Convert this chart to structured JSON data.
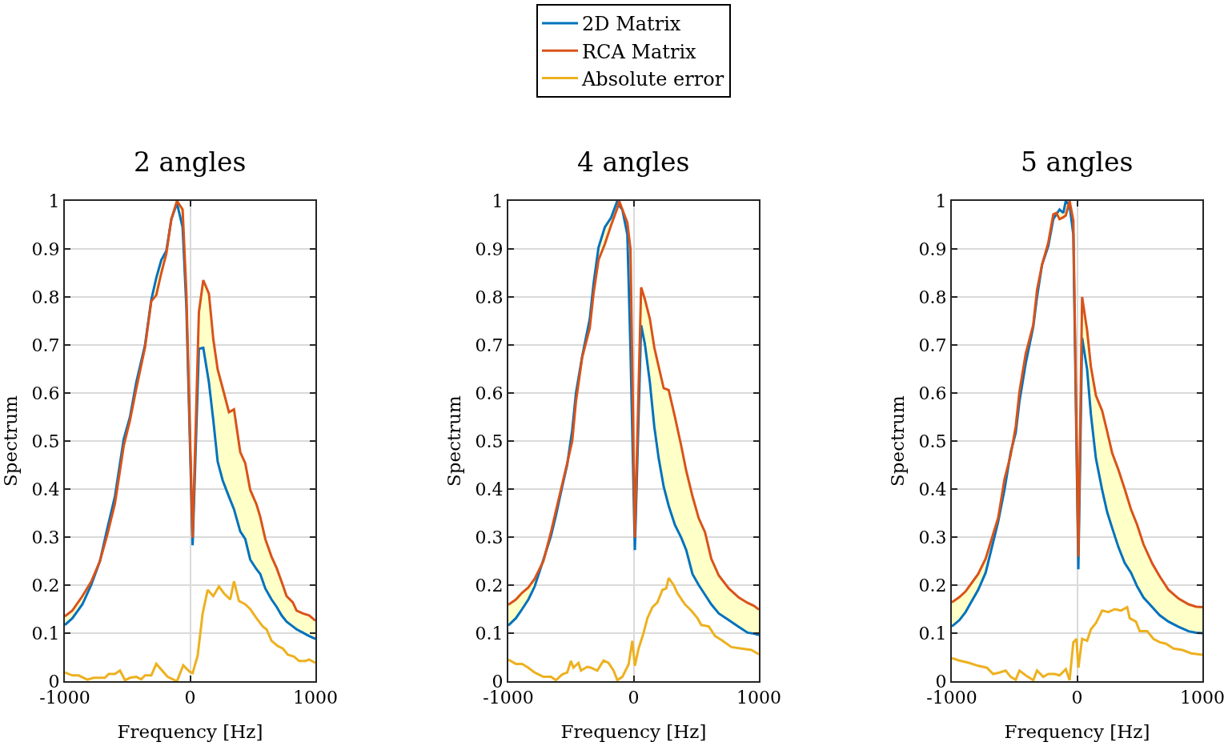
{
  "chart_data": [
    {
      "type": "line",
      "title": "2 angles",
      "xlabel": "Frequency [Hz]",
      "ylabel": "Spectrum",
      "xlim": [
        -1000,
        1000
      ],
      "ylim": [
        0,
        1
      ],
      "xticks": [
        -1000,
        0,
        1000
      ],
      "yticks": [
        0,
        0.1,
        0.2,
        0.3,
        0.4,
        0.5,
        0.6,
        0.7,
        0.8,
        0.9,
        1
      ],
      "grid": true,
      "x": [
        -1000,
        -940,
        -860,
        -790,
        -720,
        -660,
        -600,
        -530,
        -480,
        -430,
        -360,
        -310,
        -270,
        -230,
        -190,
        -150,
        -105,
        -60,
        -30,
        20,
        70,
        105,
        150,
        185,
        220,
        260,
        310,
        350,
        400,
        440,
        480,
        530,
        560,
        600,
        650,
        690,
        730,
        770,
        820,
        850,
        900,
        950,
        1000
      ],
      "series": [
        {
          "color": "#0072bd",
          "values": [
            0.117,
            0.131,
            0.16,
            0.2,
            0.25,
            0.319,
            0.385,
            0.504,
            0.55,
            0.622,
            0.7,
            0.794,
            0.84,
            0.877,
            0.896,
            0.962,
            0.995,
            0.945,
            0.78,
            0.283,
            0.692,
            0.694,
            0.622,
            0.543,
            0.457,
            0.418,
            0.384,
            0.358,
            0.312,
            0.296,
            0.253,
            0.233,
            0.223,
            0.193,
            0.17,
            0.155,
            0.137,
            0.124,
            0.114,
            0.108,
            0.101,
            0.094,
            0.088
          ]
        },
        {
          "color": "#d95319",
          "values": [
            0.135,
            0.147,
            0.177,
            0.207,
            0.25,
            0.306,
            0.37,
            0.49,
            0.543,
            0.609,
            0.695,
            0.791,
            0.804,
            0.85,
            0.89,
            0.962,
            1,
            0.982,
            0.81,
            0.299,
            0.768,
            0.835,
            0.807,
            0.712,
            0.649,
            0.61,
            0.56,
            0.566,
            0.477,
            0.454,
            0.398,
            0.368,
            0.342,
            0.296,
            0.259,
            0.236,
            0.207,
            0.177,
            0.164,
            0.147,
            0.141,
            0.137,
            0.126
          ],
          "lower": [
            0.117,
            0.131,
            0.16,
            0.2,
            0.25,
            0.319,
            0.385,
            0.504,
            0.55,
            0.622,
            0.7,
            0.794,
            0.84,
            0.877,
            0.896,
            0.962,
            0.995,
            0.945,
            0.78,
            0.283,
            0.692,
            0.694,
            0.622,
            0.543,
            0.457,
            0.418,
            0.384,
            0.358,
            0.312,
            0.296,
            0.253,
            0.233,
            0.223,
            0.193,
            0.17,
            0.155,
            0.137,
            0.124,
            0.114,
            0.108,
            0.101,
            0.094,
            0.088
          ],
          "upper": [
            0.135,
            0.147,
            0.177,
            0.207,
            0.25,
            0.306,
            0.37,
            0.49,
            0.543,
            0.609,
            0.695,
            0.791,
            0.804,
            0.85,
            0.89,
            0.962,
            1,
            0.982,
            0.81,
            0.299,
            0.768,
            0.835,
            0.807,
            0.712,
            0.649,
            0.61,
            0.56,
            0.566,
            0.477,
            0.454,
            0.398,
            0.368,
            0.342,
            0.296,
            0.259,
            0.236,
            0.207,
            0.177,
            0.164,
            0.147,
            0.141,
            0.137,
            0.126
          ]
        },
        {
          "color": "#edb120",
          "x": [
            -1000,
            -940,
            -890,
            -820,
            -770,
            -680,
            -650,
            -600,
            -560,
            -520,
            -480,
            -430,
            -390,
            -360,
            -310,
            -270,
            -180,
            -105,
            -55,
            -5,
            20,
            60,
            100,
            140,
            185,
            230,
            270,
            320,
            350,
            390,
            440,
            480,
            530,
            580,
            610,
            650,
            700,
            740,
            780,
            830,
            870,
            920,
            950,
            1000
          ],
          "values": [
            0.018,
            0.012,
            0.012,
            0.003,
            0.007,
            0.007,
            0.015,
            0.015,
            0.022,
            0.002,
            0.007,
            0.009,
            0.004,
            0.012,
            0.012,
            0.036,
            0.009,
            0,
            0.033,
            0.02,
            0.017,
            0.053,
            0.141,
            0.19,
            0.177,
            0.197,
            0.183,
            0.17,
            0.208,
            0.167,
            0.16,
            0.15,
            0.131,
            0.114,
            0.108,
            0.084,
            0.073,
            0.068,
            0.055,
            0.051,
            0.042,
            0.042,
            0.045,
            0.038
          ]
        }
      ]
    },
    {
      "type": "line",
      "title": "4 angles",
      "xlabel": "Frequency [Hz]",
      "ylabel": "Spectrum",
      "xlim": [
        -1000,
        1000
      ],
      "ylim": [
        0,
        1
      ],
      "xticks": [
        -1000,
        0,
        1000
      ],
      "yticks": [
        0,
        0.1,
        0.2,
        0.3,
        0.4,
        0.5,
        0.6,
        0.7,
        0.8,
        0.9,
        1
      ],
      "grid": true,
      "legend": "top",
      "x": [
        -1000,
        -940,
        -890,
        -840,
        -790,
        -720,
        -660,
        -620,
        -570,
        -530,
        -490,
        -460,
        -410,
        -350,
        -320,
        -280,
        -230,
        -180,
        -130,
        -115,
        -90,
        -50,
        -25,
        10,
        60,
        90,
        130,
        165,
        200,
        240,
        280,
        330,
        380,
        420,
        470,
        520,
        570,
        620,
        680,
        760,
        840,
        910,
        960,
        1000
      ],
      "series": [
        {
          "name": "2D Matrix",
          "color": "#0072bd",
          "values": [
            0.116,
            0.131,
            0.15,
            0.17,
            0.197,
            0.253,
            0.302,
            0.345,
            0.405,
            0.451,
            0.523,
            0.6,
            0.677,
            0.754,
            0.827,
            0.903,
            0.945,
            0.965,
            1,
            0.99,
            0.982,
            0.93,
            0.69,
            0.273,
            0.741,
            0.702,
            0.622,
            0.53,
            0.464,
            0.405,
            0.365,
            0.325,
            0.299,
            0.273,
            0.223,
            0.2,
            0.18,
            0.16,
            0.141,
            0.127,
            0.113,
            0.101,
            0.099,
            0.096
          ]
        },
        {
          "name": "RCA Matrix",
          "color": "#d95319",
          "values": [
            0.159,
            0.17,
            0.184,
            0.195,
            0.213,
            0.25,
            0.31,
            0.355,
            0.41,
            0.454,
            0.5,
            0.583,
            0.675,
            0.735,
            0.807,
            0.877,
            0.91,
            0.949,
            0.985,
            1,
            0.982,
            0.955,
            0.9,
            0.299,
            0.82,
            0.795,
            0.754,
            0.695,
            0.655,
            0.61,
            0.606,
            0.55,
            0.49,
            0.438,
            0.385,
            0.339,
            0.31,
            0.255,
            0.22,
            0.193,
            0.174,
            0.163,
            0.157,
            0.149
          ],
          "lower": [
            0.116,
            0.131,
            0.15,
            0.17,
            0.197,
            0.253,
            0.302,
            0.345,
            0.405,
            0.451,
            0.523,
            0.6,
            0.677,
            0.754,
            0.827,
            0.903,
            0.945,
            0.965,
            1,
            0.99,
            0.982,
            0.93,
            0.69,
            0.273,
            0.741,
            0.702,
            0.622,
            0.53,
            0.464,
            0.405,
            0.365,
            0.325,
            0.299,
            0.273,
            0.223,
            0.2,
            0.18,
            0.16,
            0.141,
            0.127,
            0.113,
            0.101,
            0.099,
            0.096
          ],
          "upper": [
            0.159,
            0.17,
            0.184,
            0.195,
            0.213,
            0.25,
            0.31,
            0.355,
            0.41,
            0.454,
            0.5,
            0.583,
            0.675,
            0.735,
            0.807,
            0.877,
            0.91,
            0.949,
            0.985,
            1,
            0.982,
            0.955,
            0.9,
            0.299,
            0.82,
            0.795,
            0.754,
            0.695,
            0.655,
            0.61,
            0.606,
            0.55,
            0.49,
            0.438,
            0.385,
            0.339,
            0.31,
            0.255,
            0.22,
            0.193,
            0.174,
            0.163,
            0.157,
            0.149
          ]
        },
        {
          "name": "Absolute error",
          "color": "#edb120",
          "x": [
            -1000,
            -940,
            -890,
            -840,
            -790,
            -720,
            -660,
            -620,
            -570,
            -530,
            -500,
            -480,
            -440,
            -420,
            -370,
            -340,
            -290,
            -240,
            -200,
            -160,
            -130,
            -90,
            -40,
            -10,
            10,
            40,
            80,
            110,
            150,
            190,
            230,
            260,
            280,
            320,
            350,
            410,
            460,
            510,
            540,
            600,
            650,
            710,
            780,
            860,
            940,
            1000
          ],
          "values": [
            0.045,
            0.036,
            0.036,
            0.028,
            0.018,
            0.009,
            0.009,
            0.002,
            0.014,
            0.018,
            0.042,
            0.028,
            0.038,
            0.022,
            0.03,
            0.028,
            0.022,
            0.043,
            0.038,
            0.022,
            0.002,
            0.009,
            0.035,
            0.084,
            0.032,
            0.068,
            0.101,
            0.131,
            0.154,
            0.164,
            0.19,
            0.193,
            0.215,
            0.2,
            0.183,
            0.16,
            0.147,
            0.131,
            0.117,
            0.114,
            0.094,
            0.084,
            0.071,
            0.068,
            0.065,
            0.056
          ]
        }
      ]
    },
    {
      "type": "line",
      "title": "5 angles",
      "xlabel": "Frequency [Hz]",
      "ylabel": "Spectrum",
      "xlim": [
        -1000,
        1000
      ],
      "ylim": [
        0,
        1
      ],
      "xticks": [
        -1000,
        0,
        1000
      ],
      "yticks": [
        0,
        0.1,
        0.2,
        0.3,
        0.4,
        0.5,
        0.6,
        0.7,
        0.8,
        0.9,
        1
      ],
      "grid": true,
      "x": [
        -1000,
        -940,
        -890,
        -840,
        -790,
        -730,
        -680,
        -630,
        -580,
        -530,
        -490,
        -460,
        -410,
        -350,
        -320,
        -280,
        -230,
        -190,
        -165,
        -140,
        -110,
        -90,
        -60,
        -30,
        10,
        40,
        80,
        110,
        150,
        200,
        240,
        280,
        330,
        380,
        430,
        480,
        530,
        600,
        660,
        730,
        810,
        890,
        950,
        1000
      ],
      "series": [
        {
          "color": "#0072bd",
          "values": [
            0.114,
            0.127,
            0.144,
            0.167,
            0.19,
            0.226,
            0.279,
            0.332,
            0.398,
            0.477,
            0.517,
            0.583,
            0.662,
            0.738,
            0.8,
            0.867,
            0.906,
            0.962,
            0.972,
            0.982,
            0.975,
            1,
            0.99,
            0.93,
            0.233,
            0.715,
            0.649,
            0.556,
            0.464,
            0.398,
            0.352,
            0.319,
            0.279,
            0.246,
            0.226,
            0.197,
            0.174,
            0.154,
            0.137,
            0.124,
            0.113,
            0.104,
            0.101,
            0.1
          ]
        },
        {
          "color": "#d95319",
          "values": [
            0.164,
            0.175,
            0.187,
            0.205,
            0.223,
            0.255,
            0.298,
            0.34,
            0.42,
            0.471,
            0.53,
            0.603,
            0.682,
            0.742,
            0.814,
            0.867,
            0.913,
            0.972,
            0.975,
            0.962,
            0.966,
            0.97,
            1,
            0.959,
            0.259,
            0.8,
            0.73,
            0.655,
            0.595,
            0.563,
            0.52,
            0.475,
            0.44,
            0.4,
            0.358,
            0.325,
            0.285,
            0.245,
            0.218,
            0.19,
            0.172,
            0.16,
            0.155,
            0.154
          ],
          "lower": [
            0.114,
            0.127,
            0.144,
            0.167,
            0.19,
            0.226,
            0.279,
            0.332,
            0.398,
            0.477,
            0.517,
            0.583,
            0.662,
            0.738,
            0.8,
            0.867,
            0.906,
            0.962,
            0.972,
            0.982,
            0.975,
            1,
            0.99,
            0.93,
            0.233,
            0.715,
            0.649,
            0.556,
            0.464,
            0.398,
            0.352,
            0.319,
            0.279,
            0.246,
            0.226,
            0.197,
            0.174,
            0.154,
            0.137,
            0.124,
            0.113,
            0.104,
            0.101,
            0.1
          ],
          "upper": [
            0.164,
            0.175,
            0.187,
            0.205,
            0.223,
            0.255,
            0.298,
            0.34,
            0.42,
            0.471,
            0.53,
            0.603,
            0.682,
            0.742,
            0.814,
            0.867,
            0.913,
            0.972,
            0.975,
            0.962,
            0.966,
            0.97,
            1,
            0.959,
            0.259,
            0.8,
            0.73,
            0.655,
            0.595,
            0.563,
            0.52,
            0.475,
            0.44,
            0.4,
            0.358,
            0.325,
            0.285,
            0.245,
            0.218,
            0.19,
            0.172,
            0.16,
            0.155,
            0.154
          ]
        },
        {
          "color": "#edb120",
          "x": [
            -1000,
            -940,
            -860,
            -790,
            -720,
            -670,
            -620,
            -570,
            -530,
            -490,
            -460,
            -410,
            -350,
            -320,
            -270,
            -230,
            -180,
            -140,
            -90,
            -60,
            -30,
            -5,
            10,
            40,
            80,
            110,
            150,
            200,
            250,
            300,
            350,
            400,
            420,
            470,
            500,
            560,
            610,
            660,
            710,
            770,
            840,
            910,
            1000
          ],
          "values": [
            0.048,
            0.043,
            0.038,
            0.032,
            0.028,
            0.015,
            0.018,
            0.022,
            0.009,
            0.003,
            0.022,
            0.012,
            0.002,
            0.022,
            0.009,
            0.015,
            0.015,
            0.012,
            0.025,
            0.002,
            0.081,
            0.088,
            0.028,
            0.088,
            0.084,
            0.108,
            0.121,
            0.147,
            0.144,
            0.15,
            0.147,
            0.154,
            0.131,
            0.124,
            0.104,
            0.104,
            0.088,
            0.081,
            0.078,
            0.068,
            0.065,
            0.058,
            0.055
          ]
        }
      ]
    }
  ]
}
